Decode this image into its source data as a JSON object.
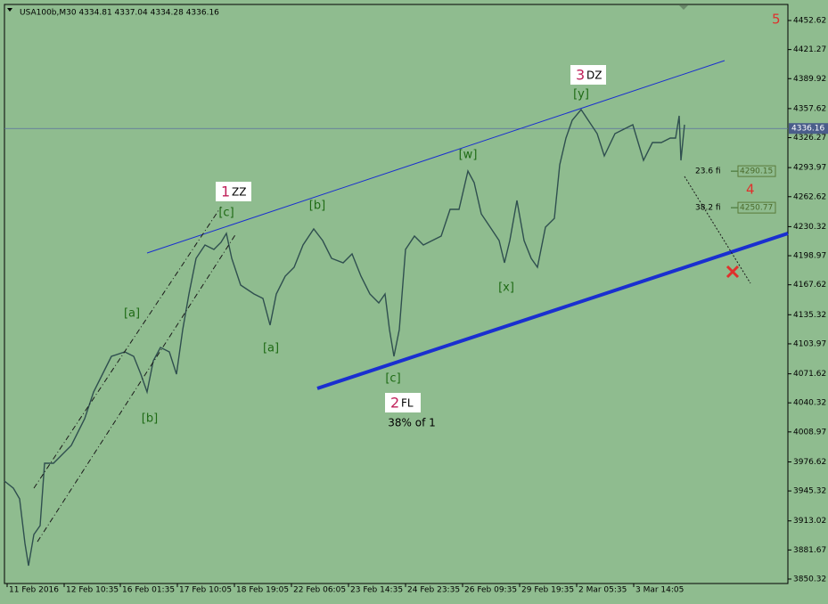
{
  "chart_data": {
    "type": "line",
    "title": "USA100b,M30  4334.81 4337.04 4334.28 4336.16",
    "color": "#2f4f4f",
    "xlim": [
      0,
      879
    ],
    "ylim": [
      3845.5,
      4469.9
    ],
    "xticks": [
      {
        "value": 3,
        "label": "11 Feb 2016"
      },
      {
        "value": 67,
        "label": "12 Feb 10:35"
      },
      {
        "value": 130,
        "label": "16 Feb 01:35"
      },
      {
        "value": 194,
        "label": "17 Feb 10:05"
      },
      {
        "value": 258,
        "label": "18 Feb 19:05"
      },
      {
        "value": 322,
        "label": "22 Feb 06:05"
      },
      {
        "value": 386,
        "label": "23 Feb 14:35"
      },
      {
        "value": 450,
        "label": "24 Feb 23:35"
      },
      {
        "value": 514,
        "label": "26 Feb 09:35"
      },
      {
        "value": 578,
        "label": "29 Feb 19:35"
      },
      {
        "value": 642,
        "label": "2 Mar 05:35"
      },
      {
        "value": 706,
        "label": "3 Mar 14:05"
      }
    ],
    "yticks": [
      4452.62,
      4421.27,
      4389.92,
      4357.62,
      4326.27,
      4293.97,
      4262.62,
      4230.32,
      4198.97,
      4167.62,
      4135.32,
      4103.97,
      4071.62,
      4040.32,
      4008.97,
      3976.62,
      3945.32,
      3913.02,
      3881.67,
      3850.32
    ],
    "x": [
      0,
      10,
      17,
      23,
      27,
      33,
      40,
      45,
      55,
      65,
      75,
      90,
      100,
      110,
      120,
      135,
      145,
      153,
      160,
      167,
      175,
      185,
      193,
      200,
      207,
      215,
      225,
      235,
      243,
      249,
      255,
      265,
      280,
      290,
      298,
      305,
      315,
      325,
      335,
      347,
      357,
      367,
      380,
      390,
      400,
      410,
      420,
      427,
      432,
      437,
      443,
      450,
      460,
      470,
      480,
      490,
      500,
      510,
      520,
      527,
      535,
      545,
      555,
      561,
      567,
      575,
      583,
      591,
      598,
      607,
      617,
      623,
      630,
      637,
      647,
      655,
      665,
      673,
      685,
      695,
      705,
      711,
      717,
      727,
      737,
      747,
      753,
      757,
      759,
      763
    ],
    "values": [
      3956.0,
      3948.3,
      3936.8,
      3888.7,
      3864.7,
      3898.3,
      3907.9,
      3975.2,
      3975.2,
      3984.8,
      3994.4,
      4023.2,
      4052.0,
      4071.2,
      4090.5,
      4095.3,
      4090.5,
      4071.2,
      4052.0,
      4085.7,
      4100.1,
      4095.3,
      4071.2,
      4119.3,
      4157.7,
      4196.1,
      4210.5,
      4205.7,
      4213.4,
      4223.0,
      4196.1,
      4167.3,
      4157.7,
      4152.9,
      4124.1,
      4157.7,
      4176.9,
      4186.5,
      4210.5,
      4227.8,
      4215.3,
      4196.1,
      4191.3,
      4200.9,
      4176.9,
      4157.7,
      4148.1,
      4157.7,
      4119.3,
      4090.5,
      4119.3,
      4205.7,
      4220.1,
      4210.5,
      4215.3,
      4220.1,
      4249.0,
      4249.0,
      4290.3,
      4277.8,
      4244.1,
      4229.7,
      4215.3,
      4191.3,
      4215.3,
      4258.6,
      4215.3,
      4196.1,
      4186.5,
      4229.7,
      4239.3,
      4297.0,
      4325.8,
      4345.0,
      4356.5,
      4345.0,
      4330.6,
      4306.6,
      4330.6,
      4335.4,
      4340.2,
      4321.0,
      4301.8,
      4321.0,
      4321.0,
      4325.8,
      4325.8,
      4349.8,
      4301.8,
      4340.2
    ],
    "current_price": 4336.16,
    "trend_lines": [
      {
        "x": [
          160,
          808
        ],
        "y": [
          4201.9,
          4409.4
        ],
        "color": "#1a2fd0",
        "width": 1,
        "dash": "none"
      },
      {
        "x": [
          351,
          879
        ],
        "y": [
          4055.9,
          4223.0
        ],
        "color": "#1a2fd0",
        "width": 4,
        "dash": "none"
      },
      {
        "x": [
          33,
          243
        ],
        "y": [
          3948.3,
          4251.8
        ],
        "color": "#1a1a1a",
        "width": 1,
        "dash": "6 3 1 3"
      },
      {
        "x": [
          37,
          260
        ],
        "y": [
          3890.6,
          4223.0
        ],
        "color": "#1a1a1a",
        "width": 1,
        "dash": "6 3 1 3"
      },
      {
        "x": [
          763,
          837
        ],
        "y": [
          4284.5,
          4169.2
        ],
        "color": "#1a1a1a",
        "width": 1,
        "dash": "2 2"
      }
    ],
    "fib_levels": [
      {
        "label": "23.6  fi",
        "price": 4290.15
      },
      {
        "label": "38.2  fi",
        "price": 4250.77
      }
    ],
    "wave_labels": [
      "[a]",
      "[b]",
      "[c]",
      "[b]",
      "[a]",
      "[c]",
      "[w]",
      "[x]",
      "[y]"
    ],
    "degree_labels": [
      {
        "number": "1",
        "tag": "ZZ"
      },
      {
        "number": "2",
        "tag": "FL"
      },
      {
        "number": "3",
        "tag": "DZ"
      }
    ],
    "targets": [
      "5",
      "4"
    ],
    "note": "38% of 1"
  }
}
